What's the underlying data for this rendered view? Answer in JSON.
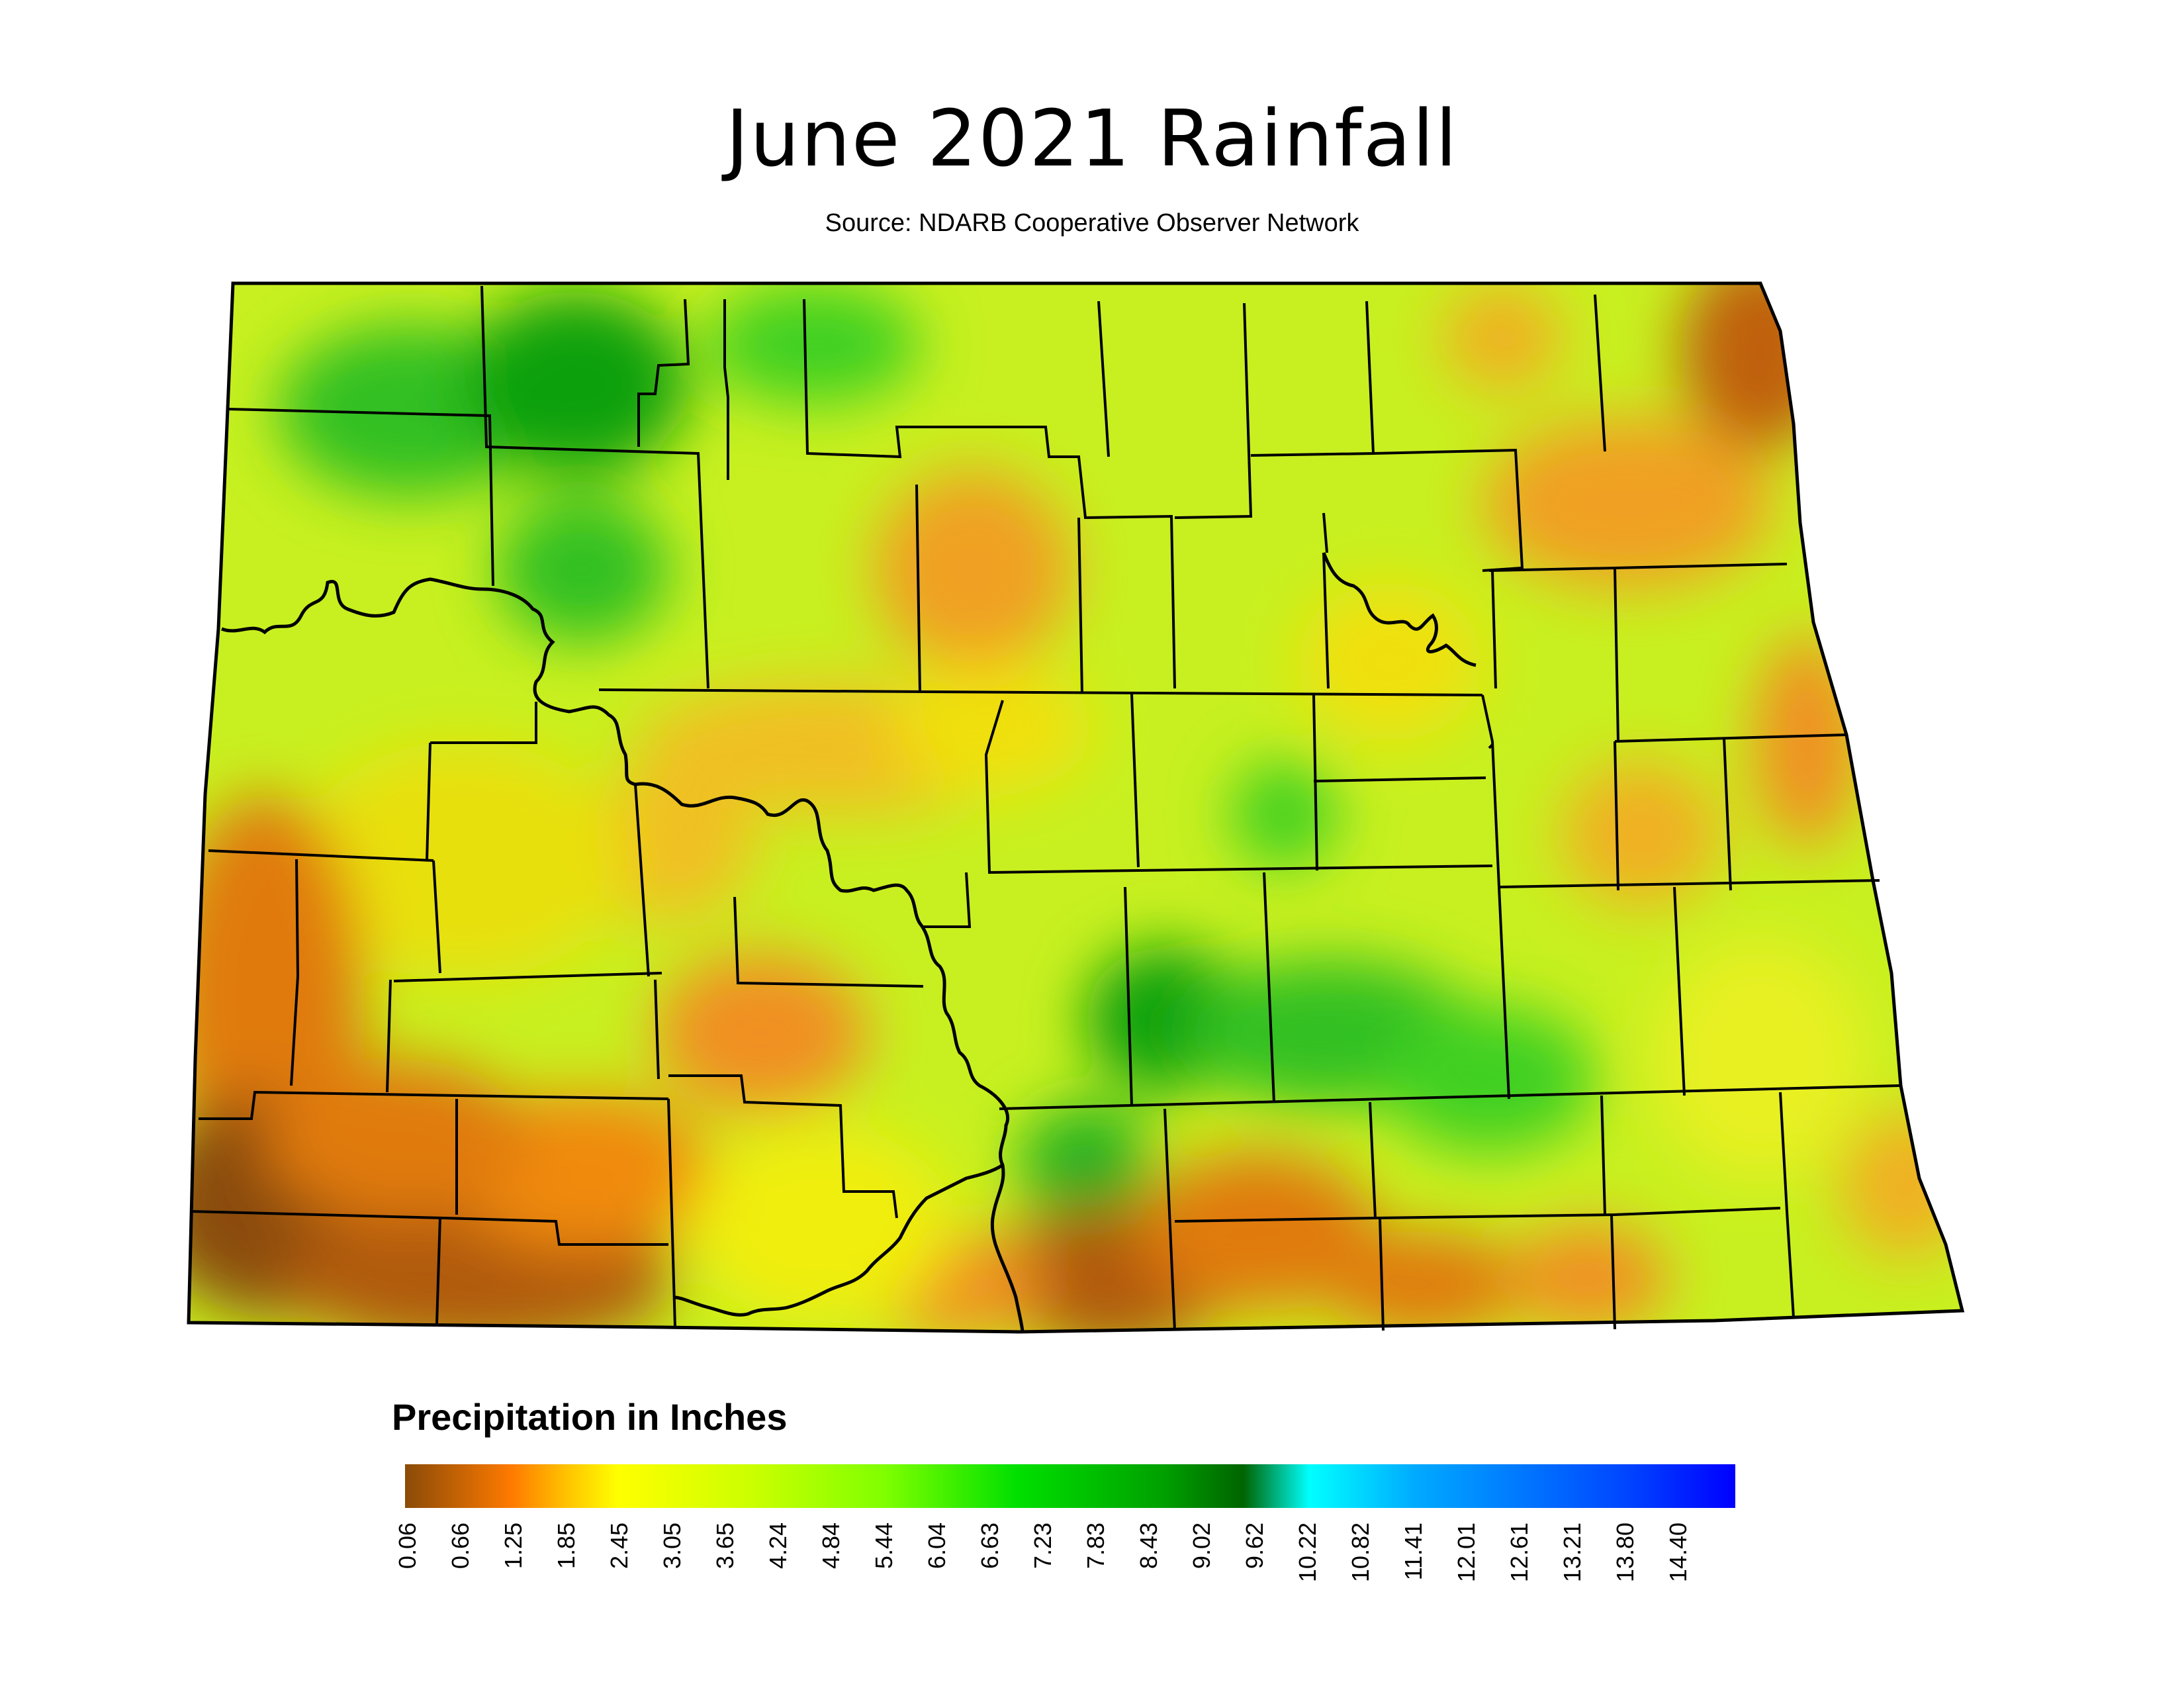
{
  "title": "June 2021 Rainfall",
  "subtitle": "Source: NDARB Cooperative Observer Network",
  "legend": {
    "title": "Precipitation in Inches",
    "ticks": [
      "0.06",
      "0.66",
      "1.25",
      "1.85",
      "2.45",
      "3.05",
      "3.65",
      "4.24",
      "4.84",
      "5.44",
      "6.04",
      "6.63",
      "7.23",
      "7.83",
      "8.43",
      "9.02",
      "9.62",
      "10.22",
      "10.82",
      "11.41",
      "12.01",
      "12.61",
      "13.21",
      "13.80",
      "14.40"
    ],
    "colors": [
      "#8a4b08",
      "#ff7a00",
      "#ffc000",
      "#ffff00",
      "#ccff00",
      "#80ff00",
      "#00e000",
      "#00a000",
      "#006400",
      "#00ffff",
      "#00aaff",
      "#0077ff",
      "#0044ff",
      "#0000ff"
    ]
  },
  "map": {
    "region": "North Dakota",
    "color_zones": {
      "dry_brown": "#9a5a10",
      "dry_orange": "#f08a10",
      "moderate_yellow": "#f4ee10",
      "moderate_lime": "#c0f020",
      "wet_green": "#40d020",
      "very_wet_green": "#109010"
    }
  }
}
